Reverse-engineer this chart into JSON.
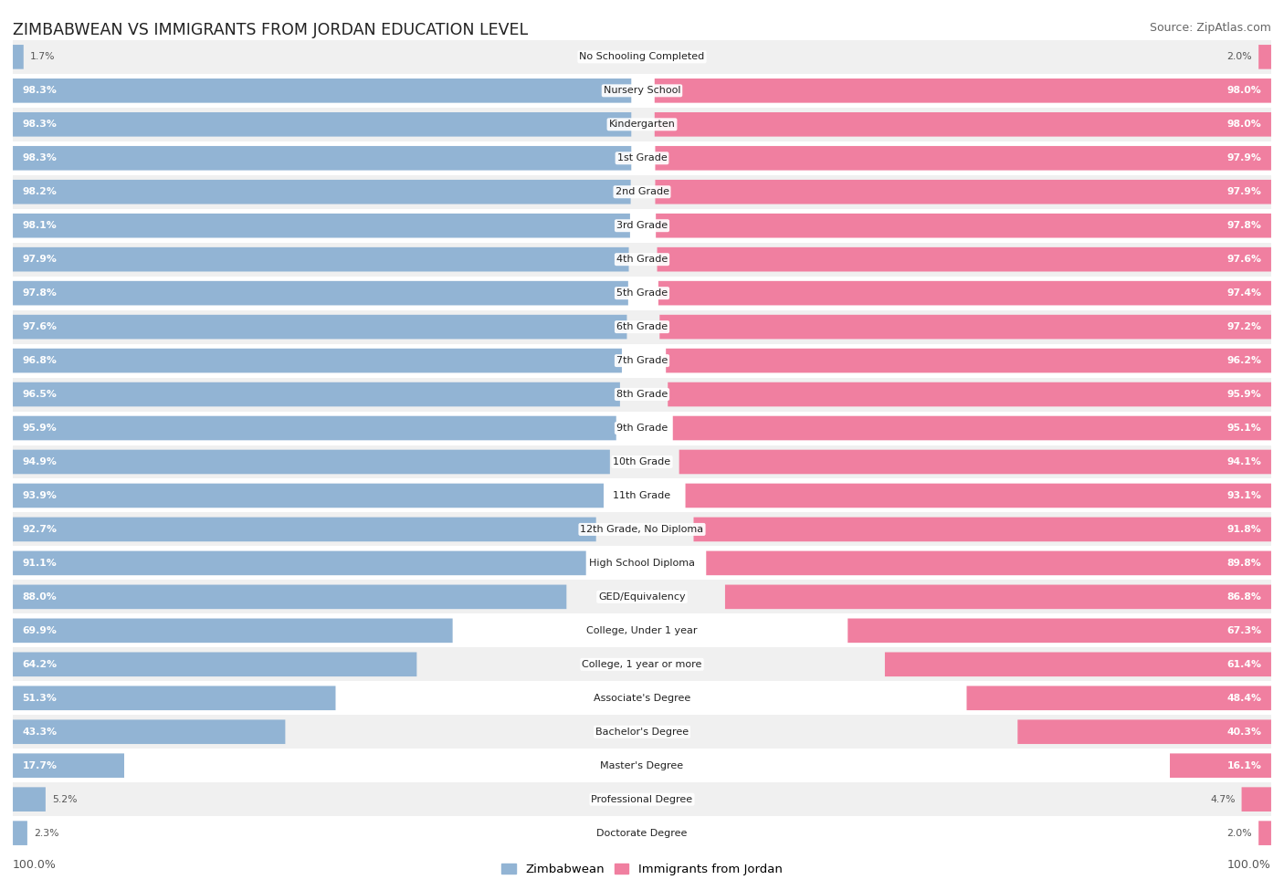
{
  "title": "ZIMBABWEAN VS IMMIGRANTS FROM JORDAN EDUCATION LEVEL",
  "source": "Source: ZipAtlas.com",
  "categories": [
    "No Schooling Completed",
    "Nursery School",
    "Kindergarten",
    "1st Grade",
    "2nd Grade",
    "3rd Grade",
    "4th Grade",
    "5th Grade",
    "6th Grade",
    "7th Grade",
    "8th Grade",
    "9th Grade",
    "10th Grade",
    "11th Grade",
    "12th Grade, No Diploma",
    "High School Diploma",
    "GED/Equivalency",
    "College, Under 1 year",
    "College, 1 year or more",
    "Associate's Degree",
    "Bachelor's Degree",
    "Master's Degree",
    "Professional Degree",
    "Doctorate Degree"
  ],
  "zimbabwean": [
    1.7,
    98.3,
    98.3,
    98.3,
    98.2,
    98.1,
    97.9,
    97.8,
    97.6,
    96.8,
    96.5,
    95.9,
    94.9,
    93.9,
    92.7,
    91.1,
    88.0,
    69.9,
    64.2,
    51.3,
    43.3,
    17.7,
    5.2,
    2.3
  ],
  "jordan": [
    2.0,
    98.0,
    98.0,
    97.9,
    97.9,
    97.8,
    97.6,
    97.4,
    97.2,
    96.2,
    95.9,
    95.1,
    94.1,
    93.1,
    91.8,
    89.8,
    86.8,
    67.3,
    61.4,
    48.4,
    40.3,
    16.1,
    4.7,
    2.0
  ],
  "blue_color": "#92b4d4",
  "pink_color": "#f07fa0",
  "legend_blue": "Zimbabwean",
  "legend_pink": "Immigrants from Jordan",
  "row_even_color": "#f0f0f0",
  "row_odd_color": "#ffffff"
}
